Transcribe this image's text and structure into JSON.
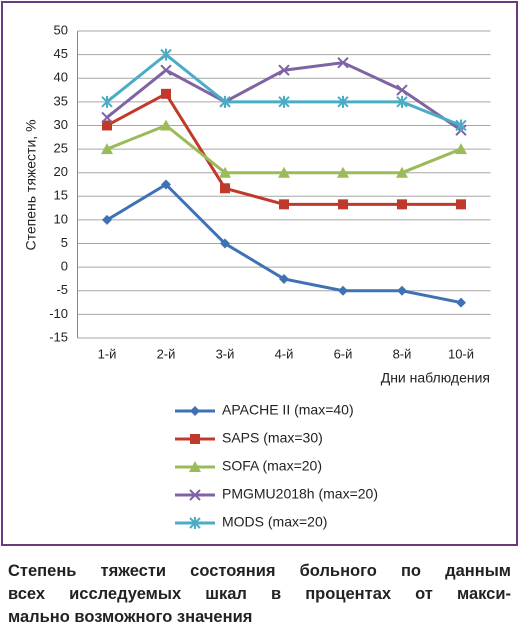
{
  "chart_data": {
    "type": "line",
    "ylabel": "Степень тяжести, %",
    "xlabel": "Дни наблюдения",
    "categories": [
      "1-й",
      "2-й",
      "3-й",
      "4-й",
      "6-й",
      "8-й",
      "10-й"
    ],
    "ylim": [
      -15,
      50
    ],
    "yticks": [
      -15,
      -10,
      -5,
      0,
      5,
      10,
      15,
      20,
      25,
      30,
      35,
      40,
      45,
      50
    ],
    "grid": true,
    "legend": "bottom",
    "series": [
      {
        "name": "APACHE II (max=40)",
        "color": "#3f72b5",
        "marker": "diamond",
        "values": [
          10,
          17.5,
          5,
          -2.5,
          -5,
          -5,
          -7.5
        ]
      },
      {
        "name": "SAPS (max=30)",
        "color": "#c0392b",
        "marker": "square",
        "values": [
          30,
          36.7,
          16.7,
          13.3,
          13.3,
          13.3,
          13.3
        ]
      },
      {
        "name": "SOFA (max=20)",
        "color": "#9bbb59",
        "marker": "triangle",
        "values": [
          25,
          30,
          20,
          20,
          20,
          20,
          25
        ]
      },
      {
        "name": "PMGMU2018h (max=20)",
        "color": "#7f63a3",
        "marker": "x",
        "values": [
          31.7,
          41.7,
          35,
          41.7,
          43.3,
          37.5,
          29
        ]
      },
      {
        "name": "MODS (max=20)",
        "color": "#4bacc6",
        "marker": "star",
        "values": [
          35,
          45,
          35,
          35,
          35,
          35,
          30
        ]
      }
    ]
  },
  "caption": {
    "lines": [
      "Степень тяжести состояния больного по данным",
      "всех исследуемых шкал в процентах от макси-",
      "мально возможного значения"
    ]
  }
}
